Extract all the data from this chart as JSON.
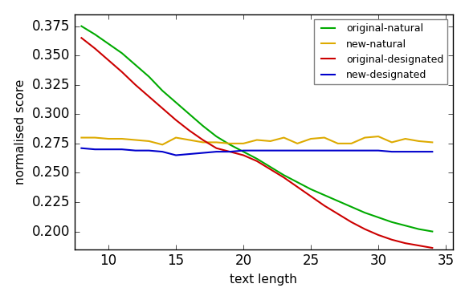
{
  "original_natural_x": [
    8,
    9,
    10,
    11,
    12,
    13,
    14,
    15,
    16,
    17,
    18,
    19,
    20,
    21,
    22,
    23,
    24,
    25,
    26,
    27,
    28,
    29,
    30,
    31,
    32,
    33,
    34
  ],
  "original_natural_y": [
    0.375,
    0.368,
    0.36,
    0.352,
    0.342,
    0.332,
    0.32,
    0.31,
    0.3,
    0.29,
    0.281,
    0.274,
    0.268,
    0.262,
    0.255,
    0.248,
    0.242,
    0.236,
    0.231,
    0.226,
    0.221,
    0.216,
    0.212,
    0.208,
    0.205,
    0.202,
    0.2
  ],
  "new_natural_x": [
    8,
    9,
    10,
    11,
    12,
    13,
    14,
    15,
    16,
    17,
    18,
    19,
    20,
    21,
    22,
    23,
    24,
    25,
    26,
    27,
    28,
    29,
    30,
    31,
    32,
    33,
    34
  ],
  "new_natural_y": [
    0.28,
    0.28,
    0.279,
    0.279,
    0.278,
    0.277,
    0.274,
    0.28,
    0.278,
    0.276,
    0.276,
    0.275,
    0.275,
    0.278,
    0.277,
    0.28,
    0.275,
    0.279,
    0.28,
    0.275,
    0.275,
    0.28,
    0.281,
    0.276,
    0.279,
    0.277,
    0.276
  ],
  "original_designated_x": [
    8,
    9,
    10,
    11,
    12,
    13,
    14,
    15,
    16,
    17,
    18,
    19,
    20,
    21,
    22,
    23,
    24,
    25,
    26,
    27,
    28,
    29,
    30,
    31,
    32,
    33,
    34
  ],
  "original_designated_y": [
    0.365,
    0.356,
    0.346,
    0.336,
    0.325,
    0.315,
    0.305,
    0.295,
    0.286,
    0.278,
    0.271,
    0.268,
    0.265,
    0.26,
    0.253,
    0.246,
    0.238,
    0.23,
    0.222,
    0.215,
    0.208,
    0.202,
    0.197,
    0.193,
    0.19,
    0.188,
    0.186
  ],
  "new_designated_x": [
    8,
    9,
    10,
    11,
    12,
    13,
    14,
    15,
    16,
    17,
    18,
    19,
    20,
    21,
    22,
    23,
    24,
    25,
    26,
    27,
    28,
    29,
    30,
    31,
    32,
    33,
    34
  ],
  "new_designated_y": [
    0.271,
    0.27,
    0.27,
    0.27,
    0.269,
    0.269,
    0.268,
    0.265,
    0.266,
    0.267,
    0.268,
    0.268,
    0.269,
    0.269,
    0.269,
    0.269,
    0.269,
    0.269,
    0.269,
    0.269,
    0.269,
    0.269,
    0.269,
    0.268,
    0.268,
    0.268,
    0.268
  ],
  "colors": {
    "original_natural": "#00aa00",
    "new_natural": "#ddaa00",
    "original_designated": "#cc0000",
    "new_designated": "#0000cc"
  },
  "xlabel": "text length",
  "ylabel": "normalised score",
  "xlim": [
    7.5,
    35.5
  ],
  "ylim": [
    0.185,
    0.385
  ],
  "yticks": [
    0.2,
    0.225,
    0.25,
    0.275,
    0.3,
    0.325,
    0.35,
    0.375
  ],
  "xticks": [
    10,
    15,
    20,
    25,
    30,
    35
  ],
  "legend_labels": [
    "original-natural",
    "new-natural",
    "original-designated",
    "new-designated"
  ],
  "plot_bg": "#ffffff",
  "fig_bg": "#ffffff",
  "linewidth": 1.5
}
